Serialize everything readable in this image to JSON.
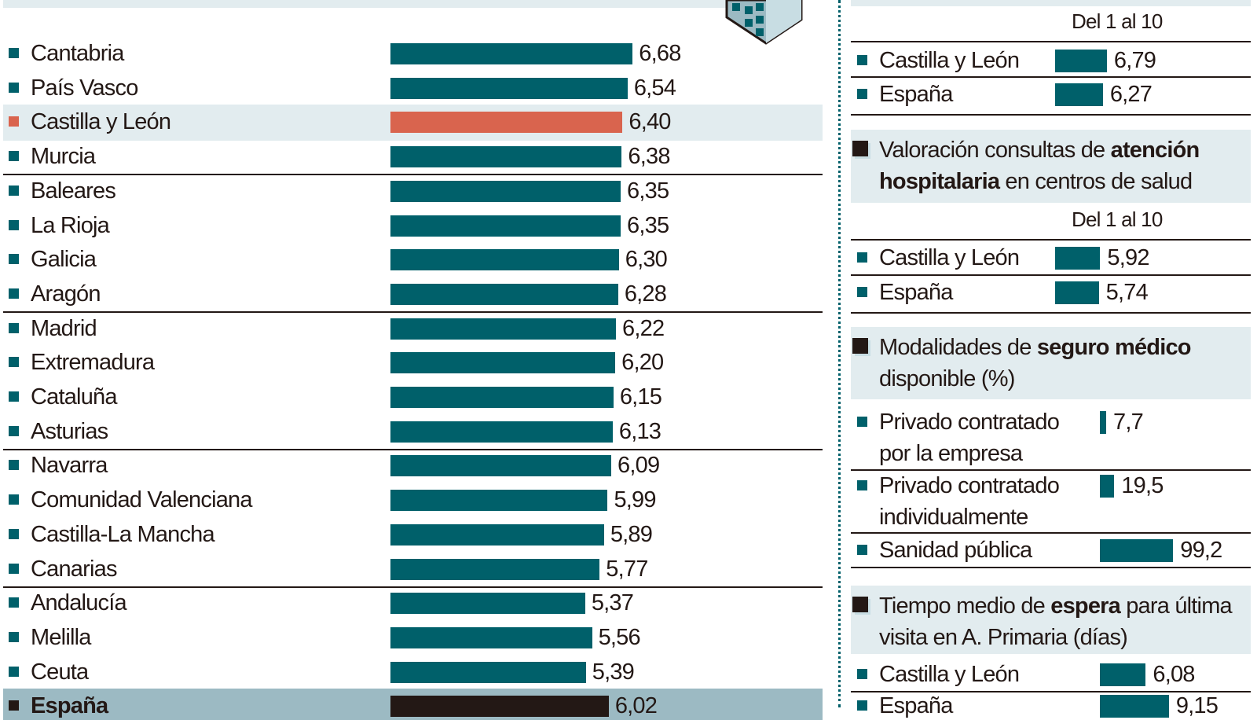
{
  "colors": {
    "bar": "#00606a",
    "highlight": "#d9644e",
    "total": "#231815",
    "highlight_bg": "#e2ecef",
    "total_bg": "#9cbac3"
  },
  "chart_data": [
    {
      "type": "bar",
      "orientation": "horizontal",
      "title": "",
      "categories": [
        "Cantabria",
        "País Vasco",
        "Castilla y León",
        "Murcia",
        "Baleares",
        "La Rioja",
        "Galicia",
        "Aragón",
        "Madrid",
        "Extremadura",
        "Cataluña",
        "Asturias",
        "Navarra",
        "Comunidad Valenciana",
        "Castilla-La Mancha",
        "Canarias",
        "Andalucía",
        "Melilla",
        "Ceuta",
        "España"
      ],
      "values": [
        6.68,
        6.54,
        6.4,
        6.38,
        6.35,
        6.35,
        6.3,
        6.28,
        6.22,
        6.2,
        6.15,
        6.13,
        6.09,
        5.99,
        5.89,
        5.77,
        5.37,
        5.56,
        5.39,
        6.02
      ],
      "value_labels": [
        "6,68",
        "6,54",
        "6,40",
        "6,38",
        "6,35",
        "6,35",
        "6,30",
        "6,28",
        "6,22",
        "6,20",
        "6,15",
        "6,13",
        "6,09",
        "5,99",
        "5,89",
        "5,77",
        "5,37",
        "5,56",
        "5,39",
        "6,02"
      ],
      "highlight": "Castilla y León",
      "total": "España"
    },
    {
      "type": "bar",
      "subtitle": "Del 1 al 10",
      "categories": [
        "Castilla y León",
        "España"
      ],
      "values": [
        6.79,
        6.27
      ],
      "value_labels": [
        "6,79",
        "6,27"
      ]
    },
    {
      "type": "bar",
      "title_parts": [
        "Valoración consultas de ",
        "atención hospitalaria",
        " en centros de salud"
      ],
      "subtitle": "Del 1 al 10",
      "categories": [
        "Castilla y León",
        "España"
      ],
      "values": [
        5.92,
        5.74
      ],
      "value_labels": [
        "5,92",
        "5,74"
      ]
    },
    {
      "type": "bar",
      "title_parts": [
        "Modalidades de ",
        "seguro médico",
        " disponible (%)"
      ],
      "categories": [
        [
          "Privado contratado",
          "por la empresa"
        ],
        [
          "Privado contratado",
          "individualmente"
        ],
        [
          "Sanidad pública"
        ]
      ],
      "values": [
        7.7,
        19.5,
        99.2
      ],
      "value_labels": [
        "7,7",
        "19,5",
        "99,2"
      ]
    },
    {
      "type": "bar",
      "title_parts": [
        "Tiempo medio de ",
        "espera",
        " para última visita en A. Primaria (días)"
      ],
      "categories": [
        "Castilla y León",
        "España"
      ],
      "values": [
        6.08,
        9.15
      ],
      "value_labels": [
        "6,08",
        "9,15"
      ]
    }
  ]
}
